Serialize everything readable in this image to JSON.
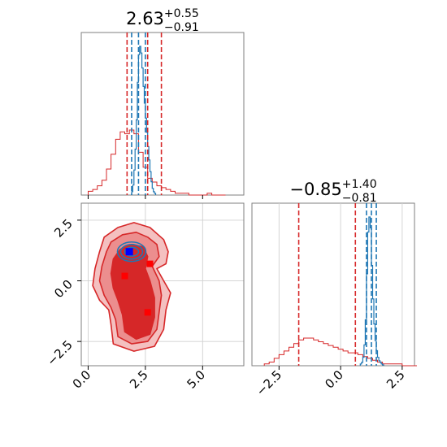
{
  "chart_data": [
    {
      "type": "histogram",
      "panel": "marginal-x",
      "title": {
        "value": "2.63",
        "plus": "+0.55",
        "minus": "−0.91"
      },
      "xlim": [
        -0.3,
        6.8
      ],
      "colors": {
        "blue": "#1f77b4",
        "red": "#d62728"
      },
      "blue_lines": [
        2.2,
        1.9,
        2.5
      ],
      "red_lines": [
        1.7,
        2.6,
        3.2
      ],
      "red_hist": {
        "edges_start": 0.0,
        "bin_width": 0.2,
        "heights": [
          2,
          3,
          5,
          8,
          14,
          22,
          30,
          34,
          33,
          35,
          33,
          23,
          15,
          9,
          7,
          5,
          4,
          3,
          2,
          1,
          1,
          1,
          0,
          0,
          0,
          0,
          1,
          0,
          0,
          0
        ]
      },
      "blue_hist": {
        "edges_start": 1.9,
        "bin_width": 0.05,
        "heights": [
          4,
          12,
          30,
          55,
          90,
          135,
          168,
          178,
          170,
          152,
          130,
          110,
          92,
          75,
          58,
          42,
          28,
          16,
          8,
          4,
          2
        ]
      }
    },
    {
      "type": "contour",
      "panel": "joint",
      "xlim": [
        -0.3,
        6.8
      ],
      "ylim": [
        -3.5,
        3.2
      ],
      "x_ticks": [
        0.0,
        2.5,
        5.0
      ],
      "x_tick_labels": [
        "0.0",
        "2.5",
        "5.0"
      ],
      "y_ticks": [
        -2.5,
        0.0,
        2.5
      ],
      "y_tick_labels": [
        "−2.5",
        "0.0",
        "2.5"
      ],
      "red_markers": [
        {
          "x": 1.6,
          "y": 0.2
        },
        {
          "x": 2.7,
          "y": 0.7
        },
        {
          "x": 2.6,
          "y": -1.3
        }
      ],
      "blue_marker": {
        "x": 1.8,
        "y": 1.2
      },
      "levels": [
        {
          "color": "#f4c0c0",
          "points": [
            [
              0.5,
              1.2
            ],
            [
              0.7,
              1.8
            ],
            [
              1.3,
              2.2
            ],
            [
              2.0,
              2.4
            ],
            [
              2.7,
              2.2
            ],
            [
              3.3,
              1.7
            ],
            [
              3.5,
              1.2
            ],
            [
              3.4,
              0.7
            ],
            [
              3.0,
              0.5
            ],
            [
              3.3,
              0.0
            ],
            [
              3.6,
              -0.5
            ],
            [
              3.4,
              -1.2
            ],
            [
              3.3,
              -2.0
            ],
            [
              2.9,
              -2.7
            ],
            [
              2.0,
              -2.9
            ],
            [
              1.1,
              -2.6
            ],
            [
              1.0,
              -1.8
            ],
            [
              0.9,
              -1.2
            ],
            [
              0.5,
              -0.8
            ],
            [
              0.2,
              -0.2
            ],
            [
              0.3,
              0.5
            ]
          ]
        },
        {
          "color": "#ec8e8e",
          "points": [
            [
              0.8,
              1.2
            ],
            [
              1.0,
              1.6
            ],
            [
              1.5,
              1.9
            ],
            [
              2.1,
              2.0
            ],
            [
              2.6,
              1.8
            ],
            [
              3.0,
              1.5
            ],
            [
              3.1,
              1.0
            ],
            [
              2.8,
              0.6
            ],
            [
              3.1,
              0.0
            ],
            [
              3.2,
              -0.6
            ],
            [
              3.1,
              -1.3
            ],
            [
              3.0,
              -2.0
            ],
            [
              2.6,
              -2.5
            ],
            [
              1.9,
              -2.6
            ],
            [
              1.3,
              -2.3
            ],
            [
              1.2,
              -1.6
            ],
            [
              1.0,
              -1.1
            ],
            [
              0.7,
              -0.6
            ],
            [
              0.5,
              0.0
            ],
            [
              0.6,
              0.6
            ]
          ]
        },
        {
          "color": "#d62728",
          "points": [
            [
              1.1,
              0.9
            ],
            [
              1.4,
              1.3
            ],
            [
              1.9,
              1.5
            ],
            [
              2.4,
              1.4
            ],
            [
              2.6,
              1.0
            ],
            [
              2.5,
              0.5
            ],
            [
              2.7,
              0.0
            ],
            [
              2.9,
              -0.7
            ],
            [
              2.9,
              -1.5
            ],
            [
              2.7,
              -2.2
            ],
            [
              2.1,
              -2.4
            ],
            [
              1.6,
              -2.1
            ],
            [
              1.5,
              -1.4
            ],
            [
              1.3,
              -0.8
            ],
            [
              1.1,
              -0.3
            ],
            [
              1.0,
              0.3
            ]
          ]
        }
      ],
      "blue_contours": [
        {
          "cx": 1.9,
          "cy": 1.2,
          "rx": 0.3,
          "ry": 0.18
        },
        {
          "cx": 1.9,
          "cy": 1.2,
          "rx": 0.48,
          "ry": 0.3
        },
        {
          "cx": 1.9,
          "cy": 1.2,
          "rx": 0.62,
          "ry": 0.4
        }
      ]
    },
    {
      "type": "histogram",
      "panel": "marginal-y",
      "title": {
        "value": "−0.85",
        "plus": "+1.40",
        "minus": "−0.81"
      },
      "xlim": [
        -3.6,
        3.0
      ],
      "x_ticks": [
        -2.5,
        0.0,
        2.5
      ],
      "x_tick_labels": [
        "−2.5",
        "0.0",
        "2.5"
      ],
      "blue_lines": [
        1.05,
        1.25,
        1.45
      ],
      "red_lines": [
        -1.7,
        0.6
      ],
      "red_hist": {
        "edges_start": -3.1,
        "bin_width": 0.2,
        "heights": [
          1,
          2,
          4,
          6,
          8,
          10,
          12,
          14,
          15,
          15,
          14,
          13,
          12,
          11,
          10,
          9,
          8,
          7,
          7,
          6,
          5,
          4,
          3,
          2,
          1,
          1,
          1,
          1,
          0,
          0,
          0
        ]
      },
      "blue_hist": {
        "edges_start": 0.8,
        "bin_width": 0.05,
        "heights": [
          2,
          4,
          10,
          25,
          55,
          110,
          160,
          178,
          165,
          120,
          80,
          50,
          30,
          18,
          10,
          6,
          4,
          2,
          1
        ]
      }
    }
  ]
}
